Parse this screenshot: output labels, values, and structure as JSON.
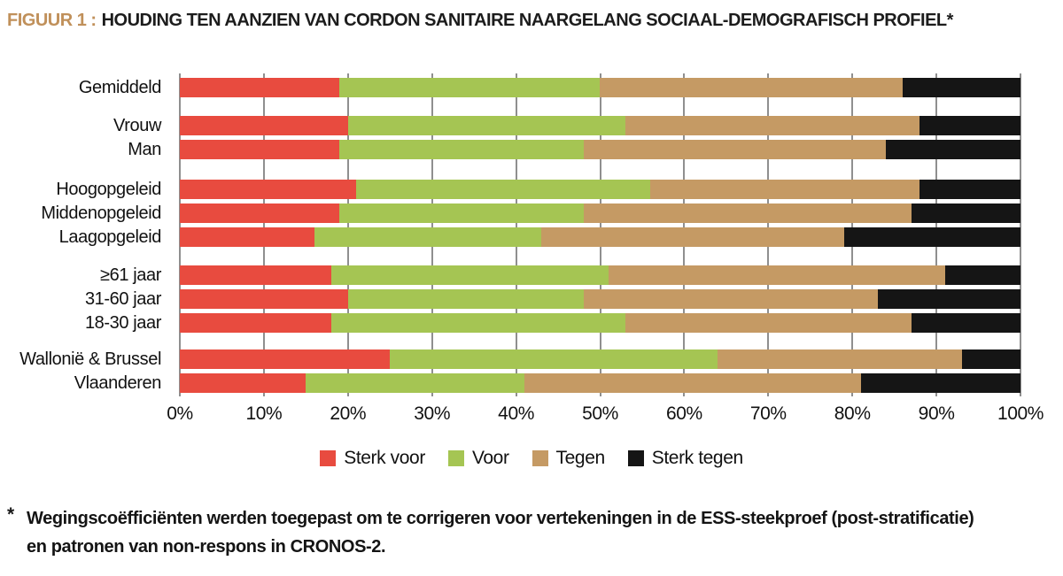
{
  "title": {
    "label": "FIGUUR 1 :",
    "text": "HOUDING TEN AANZIEN VAN CORDON SANITAIRE NAARGELANG SOCIAAL-DEMOGRAFISCH PROFIEL*",
    "accent_color": "#c0905a"
  },
  "chart_data": {
    "type": "bar",
    "stacked": true,
    "orientation": "horizontal",
    "unit": "%",
    "title": "Houding ten aanzien van cordon sanitaire naargelang sociaal-demografisch profiel",
    "xlabel": "",
    "ylabel": "",
    "xlim": [
      0,
      100
    ],
    "x_ticks": [
      0,
      10,
      20,
      30,
      40,
      50,
      60,
      70,
      80,
      90,
      100
    ],
    "x_tick_suffix": "%",
    "grid": "vertical",
    "gridline_color": "#8f8f8f",
    "legend_position": "bottom",
    "categories": [
      "Gemiddeld",
      "Vrouw",
      "Man",
      "Hoogopgeleid",
      "Middenopgeleid",
      "Laagopgeleid",
      "≥61 jaar",
      "31-60 jaar",
      "18-30 jaar",
      "Wallonië & Brussel",
      "Vlaanderen"
    ],
    "group_breaks": [
      1,
      3,
      6,
      9
    ],
    "series": [
      {
        "name": "Sterk voor",
        "color": "#e84b3f",
        "values": [
          19,
          20,
          19,
          21,
          19,
          16,
          18,
          20,
          18,
          25,
          15
        ]
      },
      {
        "name": "Voor",
        "color": "#a5c553",
        "values": [
          31,
          33,
          29,
          35,
          29,
          27,
          33,
          28,
          35,
          39,
          26
        ]
      },
      {
        "name": "Tegen",
        "color": "#c59a64",
        "values": [
          36,
          35,
          36,
          32,
          39,
          36,
          40,
          35,
          34,
          29,
          40
        ]
      },
      {
        "name": "Sterk tegen",
        "color": "#151515",
        "values": [
          14,
          12,
          16,
          12,
          13,
          21,
          9,
          17,
          13,
          7,
          19
        ]
      }
    ]
  },
  "footnote": {
    "marker": "*",
    "line1": "Wegingscoëfficiënten werden toegepast om te corrigeren voor vertekeningen in de ESS-steekproef (post-stratificatie)",
    "line2": "en patronen van non-respons in CRONOS-2."
  }
}
